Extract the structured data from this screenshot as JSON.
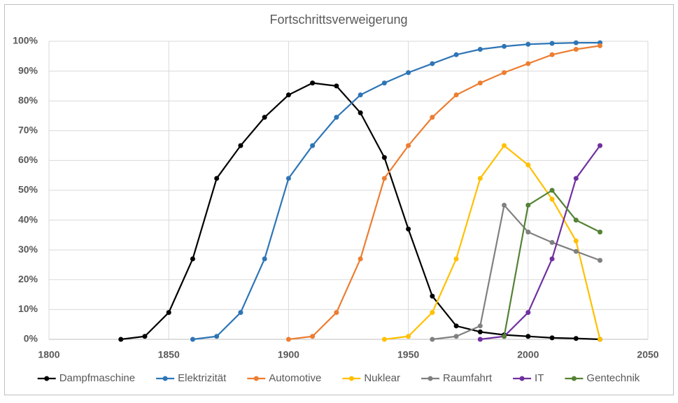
{
  "chart_data": {
    "type": "line",
    "title": "Fortschrittsverweigerung",
    "xlim": [
      1800,
      2050
    ],
    "xticks": [
      1800,
      1850,
      1900,
      1950,
      2000,
      2050
    ],
    "ylim": [
      0,
      100
    ],
    "yticks": [
      {
        "value": 0,
        "label": "0%"
      },
      {
        "value": 10,
        "label": "10%"
      },
      {
        "value": 20,
        "label": "20%"
      },
      {
        "value": 30,
        "label": "30%"
      },
      {
        "value": 40,
        "label": "40%"
      },
      {
        "value": 50,
        "label": "50%"
      },
      {
        "value": 60,
        "label": "60%"
      },
      {
        "value": 70,
        "label": "70%"
      },
      {
        "value": 80,
        "label": "80%"
      },
      {
        "value": 90,
        "label": "90%"
      },
      {
        "value": 100,
        "label": "100%"
      }
    ],
    "grid": true,
    "legend": "bottom",
    "series": [
      {
        "name": "Dampfmaschine",
        "color": "#000000",
        "x": [
          1830,
          1840,
          1850,
          1860,
          1870,
          1880,
          1890,
          1900,
          1910,
          1920,
          1930,
          1940,
          1950,
          1960,
          1970,
          1980,
          1990,
          2000,
          2010,
          2020,
          2030
        ],
        "values": [
          0,
          1,
          9,
          27,
          54,
          65,
          74.5,
          82,
          86,
          85,
          76,
          61,
          37,
          14.5,
          4.5,
          2.5,
          1.5,
          1,
          0.5,
          0.3,
          0
        ]
      },
      {
        "name": "Elektrizität",
        "color": "#2e75b6",
        "x": [
          1860,
          1870,
          1880,
          1890,
          1900,
          1910,
          1920,
          1930,
          1940,
          1950,
          1960,
          1970,
          1980,
          1990,
          2000,
          2010,
          2020,
          2030
        ],
        "values": [
          0,
          1,
          9,
          27,
          54,
          65,
          74.5,
          82,
          86,
          89.5,
          92.5,
          95.5,
          97.3,
          98.3,
          99,
          99.3,
          99.5,
          99.5
        ]
      },
      {
        "name": "Automotive",
        "color": "#ed7d31",
        "x": [
          1900,
          1910,
          1920,
          1930,
          1940,
          1950,
          1960,
          1970,
          1980,
          1990,
          2000,
          2010,
          2020,
          2030
        ],
        "values": [
          0,
          1,
          9,
          27,
          54,
          65,
          74.5,
          82,
          86,
          89.5,
          92.5,
          95.5,
          97.3,
          98.5
        ]
      },
      {
        "name": "Nuklear",
        "color": "#ffc000",
        "x": [
          1940,
          1950,
          1960,
          1970,
          1980,
          1990,
          2000,
          2010,
          2020,
          2030
        ],
        "values": [
          0,
          1,
          9,
          27,
          54,
          65,
          58.5,
          47,
          33,
          0
        ]
      },
      {
        "name": "Raumfahrt",
        "color": "#808080",
        "x": [
          1960,
          1970,
          1980,
          1990,
          2000,
          2010,
          2020,
          2030
        ],
        "values": [
          0,
          1,
          4.5,
          45,
          36,
          32.5,
          29.5,
          26.5
        ]
      },
      {
        "name": "IT",
        "color": "#7030a0",
        "x": [
          1980,
          1990,
          2000,
          2010,
          2020,
          2030
        ],
        "values": [
          0,
          1,
          9,
          27,
          54,
          65
        ]
      },
      {
        "name": "Gentechnik",
        "color": "#548235",
        "x": [
          1990,
          2000,
          2010,
          2020,
          2030
        ],
        "values": [
          1,
          45,
          50,
          40,
          36
        ]
      }
    ]
  }
}
